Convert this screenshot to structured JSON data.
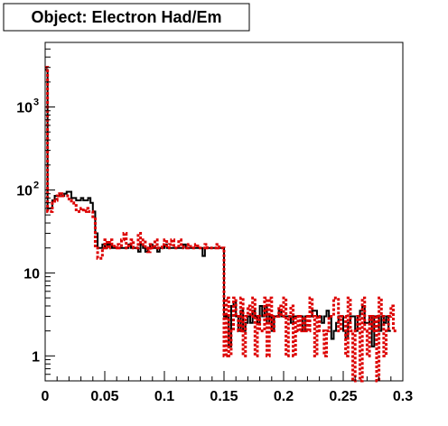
{
  "chart_data": {
    "type": "line",
    "title": "Object: Electron Had/Em",
    "xlabel": "",
    "ylabel": "",
    "xlim": [
      0,
      0.3
    ],
    "ylim": [
      0.5,
      6000
    ],
    "y_scale": "log",
    "x_ticks": [
      {
        "value": 0,
        "label": "0"
      },
      {
        "value": 0.05,
        "label": "0.05"
      },
      {
        "value": 0.1,
        "label": "0.1"
      },
      {
        "value": 0.15,
        "label": "0.15"
      },
      {
        "value": 0.2,
        "label": "0.2"
      },
      {
        "value": 0.25,
        "label": "0.25"
      },
      {
        "value": 0.3,
        "label": "0.3"
      }
    ],
    "y_ticks": [
      {
        "value": 1,
        "base": "1",
        "exp": ""
      },
      {
        "value": 10,
        "base": "10",
        "exp": ""
      },
      {
        "value": 100,
        "base": "10",
        "exp": "2"
      },
      {
        "value": 1000,
        "base": "10",
        "exp": "3"
      }
    ],
    "bin_width": 0.002,
    "grid": false,
    "legend": "none",
    "series": [
      {
        "style": "solid",
        "color": "#000000",
        "values": [
          2800,
          60,
          60,
          75,
          85,
          85,
          90,
          85,
          90,
          95,
          95,
          80,
          80,
          75,
          75,
          80,
          75,
          75,
          80,
          70,
          55,
          30,
          20,
          20,
          22,
          20,
          22,
          22,
          20,
          20,
          20,
          20,
          20,
          20,
          20,
          22,
          20,
          20,
          20,
          18,
          22,
          20,
          18,
          20,
          22,
          20,
          20,
          18,
          20,
          20,
          22,
          20,
          20,
          20,
          20,
          20,
          20,
          20,
          22,
          20,
          20,
          20,
          20,
          20,
          20,
          20,
          16,
          20,
          20,
          20,
          20,
          20,
          20,
          20,
          20,
          3,
          3,
          1.3,
          4,
          4.5,
          3,
          2,
          3.5,
          2,
          2.5,
          3,
          2.5,
          3.5,
          3,
          2.5,
          4,
          3,
          4,
          2.5,
          3,
          2,
          3,
          3,
          3.5,
          3,
          3,
          3,
          3,
          2.5,
          3,
          3,
          3,
          3,
          2,
          3,
          3,
          3,
          3.5,
          3.5,
          3,
          3,
          2.5,
          3,
          3.5,
          3,
          1.6,
          2,
          2.5,
          3,
          3,
          2,
          1.6,
          2.5,
          3,
          3,
          2,
          3,
          3.5,
          4,
          2.5,
          2.5,
          3,
          1.3,
          3,
          3,
          2,
          3,
          2.5,
          3,
          2
        ]
      },
      {
        "style": "dashed",
        "color": "#dd0000",
        "values": [
          3000,
          55,
          55,
          70,
          75,
          85,
          90,
          85,
          85,
          85,
          75,
          70,
          65,
          55,
          55,
          60,
          55,
          60,
          55,
          55,
          45,
          20,
          15,
          15,
          20,
          25,
          20,
          25,
          22,
          20,
          22,
          20,
          25,
          30,
          20,
          22,
          25,
          20,
          20,
          30,
          22,
          25,
          20,
          18,
          22,
          20,
          25,
          20,
          20,
          22,
          25,
          20,
          22,
          25,
          20,
          20,
          25,
          22,
          20,
          20,
          22,
          20,
          20,
          22,
          20,
          20,
          20,
          22,
          20,
          20,
          20,
          20,
          22,
          20,
          20,
          1,
          5,
          1,
          2,
          5,
          3,
          2,
          5,
          1,
          3,
          4,
          3,
          5,
          1,
          3,
          2,
          2,
          5,
          1,
          5,
          2,
          3,
          3,
          4,
          3,
          5,
          1,
          3,
          4,
          1,
          3,
          2,
          3,
          2,
          3,
          2,
          5,
          3,
          1,
          3,
          2,
          2,
          1,
          2,
          3,
          3,
          5,
          5,
          2,
          3,
          3,
          1,
          5,
          2,
          0.5,
          2,
          3,
          0.5,
          5,
          2,
          1,
          3,
          2,
          3,
          0.5,
          5,
          3,
          1,
          2,
          3,
          4,
          2,
          2
        ]
      }
    ]
  }
}
